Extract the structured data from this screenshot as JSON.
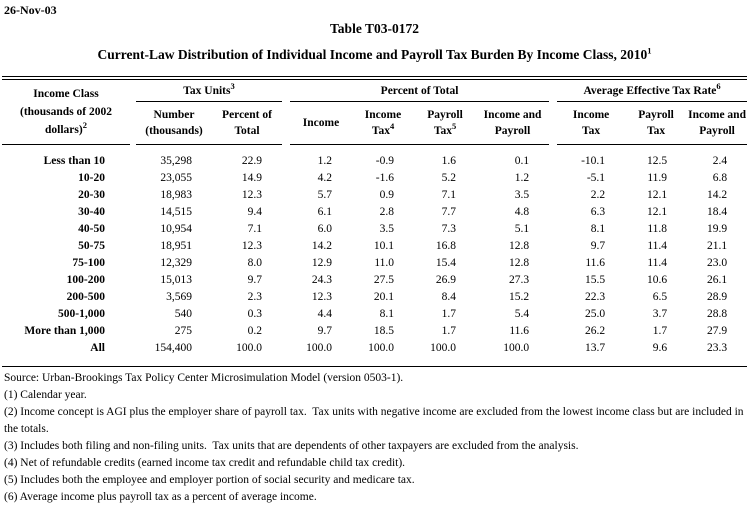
{
  "page": {
    "date": "26-Nov-03",
    "table_number": "Table T03-0172",
    "title": "Current-Law Distribution of Individual Income and Payroll Tax Burden By Income Class, 2010",
    "title_superscript": "1"
  },
  "table": {
    "income_class_header": {
      "line1": "Income Class",
      "line2": "(thousands of 2002",
      "line3": "dollars)",
      "superscript": "2"
    },
    "groups": [
      {
        "label": "Tax Units",
        "superscript": "3"
      },
      {
        "label": "Percent of Total",
        "superscript": ""
      },
      {
        "label": "Average Effective Tax Rate",
        "superscript": "6"
      }
    ],
    "subheaders": [
      {
        "line1": "Number",
        "line2": "(thousands)",
        "superscript": ""
      },
      {
        "line1": "Percent of",
        "line2": "Total",
        "superscript": ""
      },
      {
        "line1": "Income",
        "line2": "",
        "superscript": ""
      },
      {
        "line1": "Income",
        "line2": "Tax",
        "superscript": "4"
      },
      {
        "line1": "Payroll",
        "line2": "Tax",
        "superscript": "5"
      },
      {
        "line1": "Income and",
        "line2": "Payroll",
        "superscript": ""
      },
      {
        "line1": "Income",
        "line2": "Tax",
        "superscript": ""
      },
      {
        "line1": "Payroll",
        "line2": "Tax",
        "superscript": ""
      },
      {
        "line1": "Income and",
        "line2": "Payroll",
        "superscript": ""
      }
    ],
    "rows": [
      {
        "label": "Less than 10",
        "values": [
          "35,298",
          "22.9",
          "1.2",
          "-0.9",
          "1.6",
          "0.1",
          "-10.1",
          "12.5",
          "2.4"
        ]
      },
      {
        "label": "10-20",
        "values": [
          "23,055",
          "14.9",
          "4.2",
          "-1.6",
          "5.2",
          "1.2",
          "-5.1",
          "11.9",
          "6.8"
        ]
      },
      {
        "label": "20-30",
        "values": [
          "18,983",
          "12.3",
          "5.7",
          "0.9",
          "7.1",
          "3.5",
          "2.2",
          "12.1",
          "14.2"
        ]
      },
      {
        "label": "30-40",
        "values": [
          "14,515",
          "9.4",
          "6.1",
          "2.8",
          "7.7",
          "4.8",
          "6.3",
          "12.1",
          "18.4"
        ]
      },
      {
        "label": "40-50",
        "values": [
          "10,954",
          "7.1",
          "6.0",
          "3.5",
          "7.3",
          "5.1",
          "8.1",
          "11.8",
          "19.9"
        ]
      },
      {
        "label": "50-75",
        "values": [
          "18,951",
          "12.3",
          "14.2",
          "10.1",
          "16.8",
          "12.8",
          "9.7",
          "11.4",
          "21.1"
        ]
      },
      {
        "label": "75-100",
        "values": [
          "12,329",
          "8.0",
          "12.9",
          "11.0",
          "15.4",
          "12.8",
          "11.6",
          "11.4",
          "23.0"
        ]
      },
      {
        "label": "100-200",
        "values": [
          "15,013",
          "9.7",
          "24.3",
          "27.5",
          "26.9",
          "27.3",
          "15.5",
          "10.6",
          "26.1"
        ]
      },
      {
        "label": "200-500",
        "values": [
          "3,569",
          "2.3",
          "12.3",
          "20.1",
          "8.4",
          "15.2",
          "22.3",
          "6.5",
          "28.9"
        ]
      },
      {
        "label": "500-1,000",
        "values": [
          "540",
          "0.3",
          "4.4",
          "8.1",
          "1.7",
          "5.4",
          "25.0",
          "3.7",
          "28.8"
        ]
      },
      {
        "label": "More than 1,000",
        "values": [
          "275",
          "0.2",
          "9.7",
          "18.5",
          "1.7",
          "11.6",
          "26.2",
          "1.7",
          "27.9"
        ]
      },
      {
        "label": "All",
        "values": [
          "154,400",
          "100.0",
          "100.0",
          "100.0",
          "100.0",
          "100.0",
          "13.7",
          "9.6",
          "23.3"
        ]
      }
    ]
  },
  "footnotes": [
    "Source: Urban-Brookings Tax Policy Center Microsimulation Model (version 0503-1).",
    "(1) Calendar year.",
    "(2) Income concept is AGI plus the employer share of payroll tax.  Tax units with negative income are excluded from the lowest income class but are included in the totals.",
    "(3) Includes both filing and non-filing units.  Tax units that are dependents of other taxpayers are excluded from the analysis.",
    "(4) Net of refundable credits (earned income tax credit and refundable child tax credit).",
    "(5) Includes both the employee and employer portion of social security and medicare tax.",
    "(6) Average income plus payroll tax as a percent of average income."
  ]
}
